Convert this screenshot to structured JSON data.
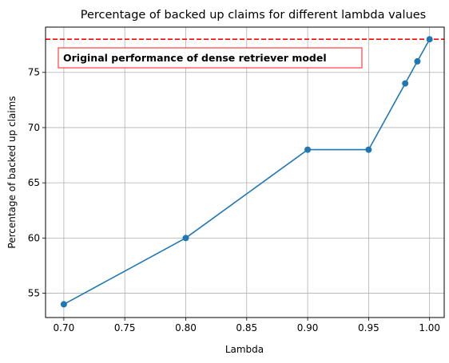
{
  "chart_data": {
    "type": "line",
    "title": "Percentage of backed up claims for different lambda values",
    "xlabel": "Lambda",
    "ylabel": "Percentage of backed up claims",
    "xlim": [
      0.685,
      1.012
    ],
    "ylim": [
      52.8,
      79.1
    ],
    "x_ticks": [
      0.7,
      0.75,
      0.8,
      0.85,
      0.9,
      0.95,
      1.0
    ],
    "x_tick_labels": [
      "0.70",
      "0.75",
      "0.80",
      "0.85",
      "0.90",
      "0.95",
      "1.00"
    ],
    "y_ticks": [
      55,
      60,
      65,
      70,
      75
    ],
    "y_tick_labels": [
      "55",
      "60",
      "65",
      "70",
      "75"
    ],
    "grid": true,
    "series": [
      {
        "x": [
          0.7,
          0.8,
          0.9,
          0.95,
          0.98,
          0.99,
          1.0
        ],
        "y": [
          54,
          60,
          68,
          68,
          74,
          76,
          78
        ],
        "color": "#1f77b4",
        "markers": true
      }
    ],
    "reference_line": {
      "y": 78,
      "color": "#ff0000",
      "style": "dashed"
    },
    "annotation": {
      "text": "Original performance of dense retriever model",
      "border_color": "#ff0000"
    }
  }
}
